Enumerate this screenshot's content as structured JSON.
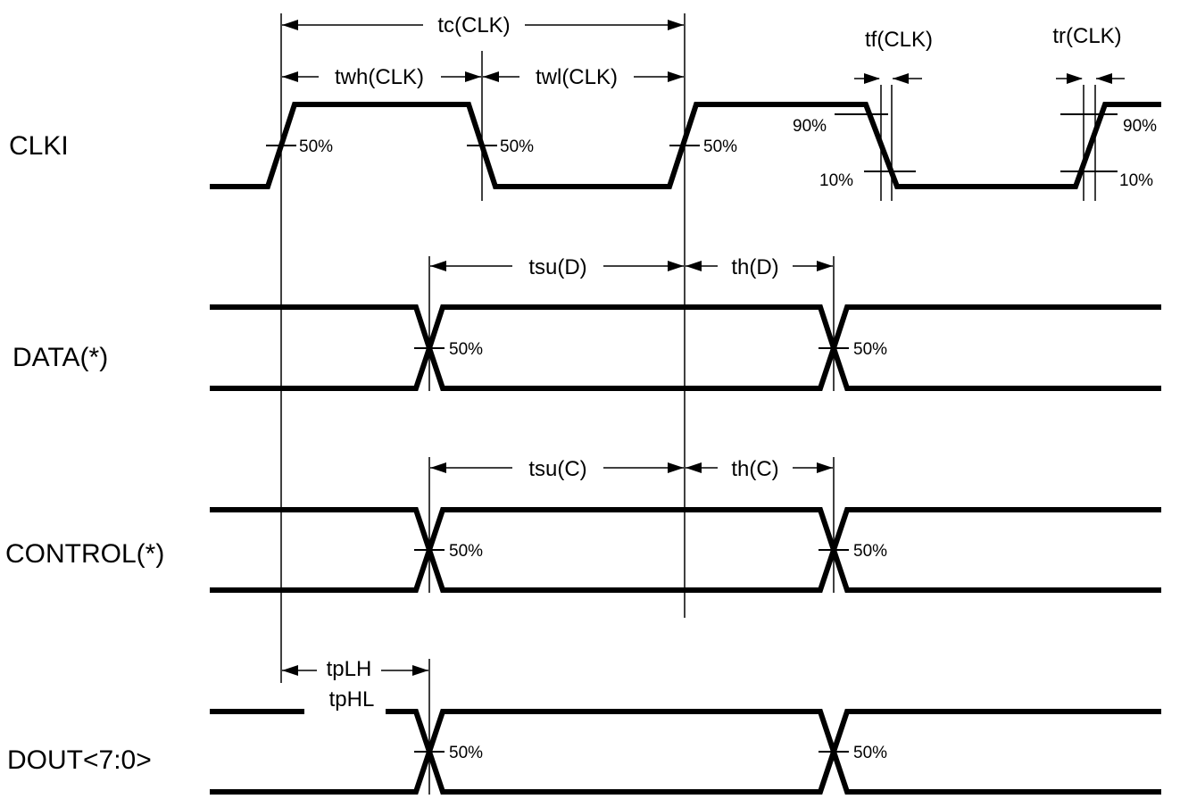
{
  "signals": {
    "clk": "CLKI",
    "data": "DATA(*)",
    "control": "CONTROL(*)",
    "dout": "DOUT<7:0>"
  },
  "timing_labels": {
    "tc": "tc(CLK)",
    "twh": "twh(CLK)",
    "twl": "twl(CLK)",
    "tf": "tf(CLK)",
    "tr": "tr(CLK)",
    "tsu_d": "tsu(D)",
    "th_d": "th(D)",
    "tsu_c": "tsu(C)",
    "th_c": "th(C)",
    "tplh": "tpLH",
    "tphl": "tpHL"
  },
  "thresholds": {
    "p50": "50%",
    "p90": "90%",
    "p10": "10%"
  }
}
